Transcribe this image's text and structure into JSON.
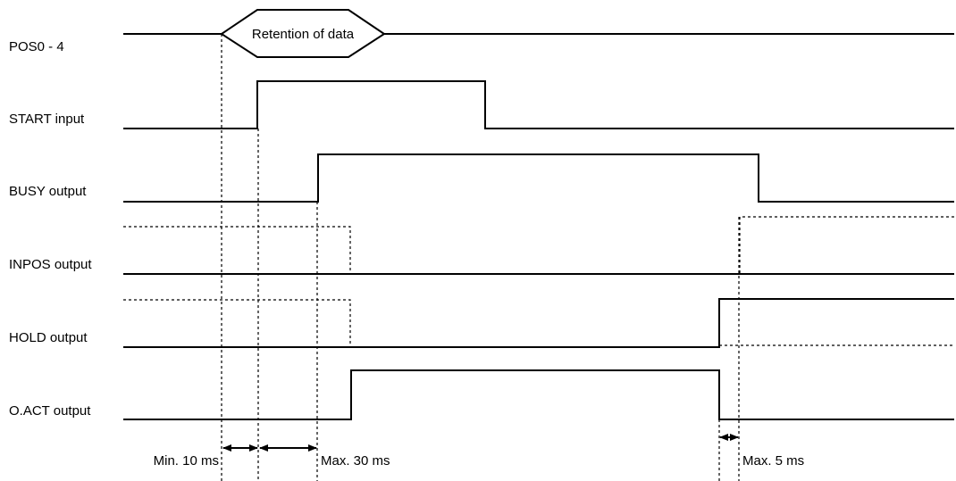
{
  "signals": {
    "pos": "POS0 - 4",
    "start": "START input",
    "busy": "BUSY output",
    "inpos": "INPOS output",
    "hold": "HOLD output",
    "oact": "O.ACT output"
  },
  "pos_box_label": "Retention of data",
  "timing": {
    "min_10": "Min. 10 ms",
    "max_30": "Max. 30 ms",
    "max_5": "Max. 5 ms"
  }
}
